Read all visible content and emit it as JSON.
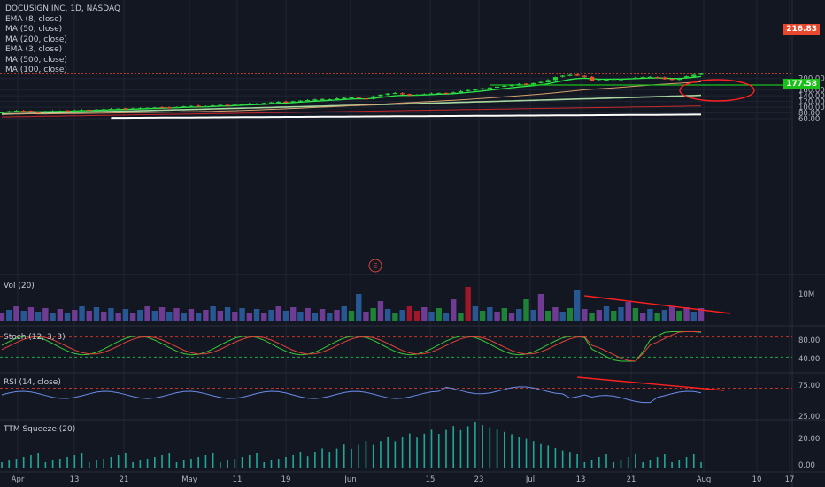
{
  "legend": {
    "title": "DOCUSIGN INC, 1D, NASDAQ",
    "indicators": [
      "EMA (8, close)",
      "MA (50, close)",
      "MA (200, close)",
      "EMA (3, close)",
      "MA (500, close)",
      "MA (100, close)"
    ]
  },
  "price_tags": {
    "last": "216.83",
    "level": "177.58"
  },
  "panels": {
    "vol": "Vol (20)",
    "stoch": "Stoch (12, 3, 3)",
    "rsi": "RSI (14, close)",
    "ttm": "TTM Squeeze (20)"
  },
  "earnings_marker": "E",
  "colors": {
    "up": "#26d23a",
    "down": "#f0552a",
    "ema_fast": "#2ee84a",
    "ma50": "#d9a06c",
    "ma100": "#a8d8a0",
    "ma200": "#c8282e",
    "ma500": "#ffffff",
    "annotation": "#ff2020",
    "level": "#18c018",
    "vol_up": "#1f8f3a",
    "vol_down": "#b0172a",
    "vol_neutral": "#7b3fa0"
  },
  "chart_data": {
    "type": "candlestick",
    "x_ticks": [
      "Apr",
      "13",
      "21",
      "May",
      "11",
      "19",
      "Jun",
      "15",
      "23",
      "Jul",
      "13",
      "21",
      "Aug",
      "10",
      "17"
    ],
    "y_ticks": [
      60,
      80,
      100,
      120,
      140,
      160,
      200
    ],
    "ylim": [
      50,
      222
    ],
    "closes": [
      82,
      86,
      88,
      87,
      84,
      82,
      85,
      87,
      88,
      87,
      89,
      90,
      91,
      92,
      93,
      94,
      95,
      94,
      96,
      97,
      98,
      99,
      100,
      99,
      101,
      103,
      104,
      102,
      104,
      106,
      108,
      107,
      109,
      111,
      113,
      112,
      115,
      117,
      119,
      118,
      121,
      123,
      125,
      127,
      129,
      128,
      131,
      133,
      135,
      132,
      129,
      138,
      144,
      148,
      150,
      146,
      141,
      144,
      146,
      148,
      150,
      149,
      152,
      156,
      160,
      163,
      166,
      169,
      172,
      175,
      178,
      181,
      180,
      184,
      188,
      195,
      205,
      210,
      213,
      211,
      206,
      192,
      194,
      197,
      199,
      198,
      201,
      203,
      205,
      206,
      204,
      198,
      196,
      201,
      208,
      213,
      216.83
    ],
    "volume_labels": [
      "10M"
    ],
    "stoch_labels": [
      "80.00",
      "40.00"
    ],
    "rsi_labels": [
      "75.00",
      "25.00"
    ],
    "ttm_labels": [
      "20.00",
      "0.00"
    ]
  }
}
